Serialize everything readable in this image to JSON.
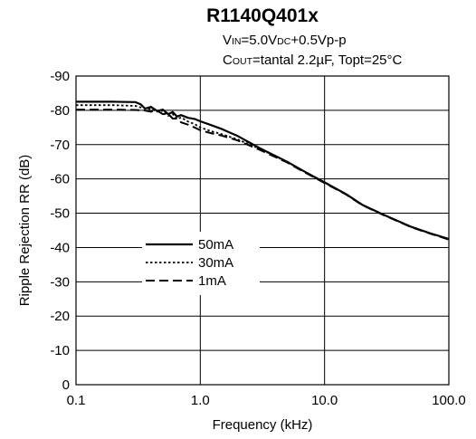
{
  "chart_data": {
    "type": "line",
    "title": "R1140Q401x",
    "conditions": {
      "line1": {
        "a": "V",
        "b": "IN",
        "c": "=5.0V",
        "d": "DC",
        "e": "+0.5Vp-p"
      },
      "line2": {
        "a": "C",
        "b": "OUT",
        "c": "=tantal 2.2",
        "d": "µ",
        "e": "F, Topt=25°C"
      }
    },
    "xlabel": "Frequency (kHz)",
    "ylabel": "Ripple Rejection RR (dB)",
    "x_scale": "log",
    "xlim": [
      0.1,
      100
    ],
    "ylim": [
      0,
      -90
    ],
    "x_ticks": [
      "0.1",
      "1.0",
      "10.0",
      "100.0"
    ],
    "y_ticks": [
      "0",
      "-10",
      "-20",
      "-30",
      "-40",
      "-50",
      "-60",
      "-70",
      "-80",
      "-90"
    ],
    "grid": true,
    "legend_position": "center-left",
    "series": [
      {
        "name": "50mA",
        "style": "solid",
        "x": [
          0.1,
          0.2,
          0.3,
          0.33,
          0.36,
          0.4,
          0.45,
          0.5,
          0.55,
          0.6,
          0.65,
          0.7,
          0.8,
          0.9,
          1.0,
          1.2,
          1.5,
          2.0,
          3.0,
          5.0,
          7.0,
          10.0,
          15.0,
          20.0,
          30.0,
          50.0,
          70.0,
          100.0
        ],
        "y": [
          -82.5,
          -82.5,
          -82.4,
          -81.8,
          -80.5,
          -81,
          -79.8,
          -80.2,
          -78.9,
          -79.5,
          -78.2,
          -78.6,
          -77.8,
          -77.5,
          -76.8,
          -75.8,
          -74.5,
          -72.5,
          -69,
          -65,
          -62,
          -59,
          -55.5,
          -52.5,
          -49.5,
          -46,
          -44.2,
          -42.5
        ]
      },
      {
        "name": "30mA",
        "style": "dotted",
        "x": [
          0.1,
          0.2,
          0.3,
          0.35,
          0.4,
          0.45,
          0.5,
          0.55,
          0.6,
          0.65,
          0.7,
          0.8,
          0.9,
          1.0,
          1.2,
          1.5,
          2.0,
          3.0,
          5.0,
          7.0,
          10.0,
          15.0,
          20.0,
          30.0,
          50.0,
          70.0,
          100.0
        ],
        "y": [
          -81.5,
          -81.5,
          -81.3,
          -80.6,
          -80.4,
          -79.6,
          -79.9,
          -78.4,
          -78.9,
          -77.5,
          -77.9,
          -76.7,
          -76,
          -75,
          -74,
          -73,
          -71.5,
          -68.8,
          -65,
          -62,
          -59,
          -55.5,
          -52.5,
          -49.5,
          -46,
          -44.2,
          -42.5
        ]
      },
      {
        "name": "1mA",
        "style": "dashed",
        "x": [
          0.1,
          0.2,
          0.3,
          0.35,
          0.4,
          0.45,
          0.5,
          0.55,
          0.6,
          0.65,
          0.7,
          0.8,
          0.9,
          1.0,
          1.2,
          1.5,
          2.0,
          3.0,
          5.0,
          7.0,
          10.0,
          15.0,
          20.0,
          30.0,
          50.0,
          70.0,
          100.0
        ],
        "y": [
          -80.2,
          -80.2,
          -80.1,
          -80,
          -79.6,
          -79.9,
          -78.9,
          -79,
          -77.6,
          -77.6,
          -76.5,
          -75.8,
          -75,
          -74.2,
          -73.4,
          -72.6,
          -71.2,
          -68.5,
          -64.8,
          -61.8,
          -58.8,
          -55.4,
          -52.4,
          -49.4,
          -45.9,
          -44.1,
          -42.3
        ]
      }
    ]
  }
}
